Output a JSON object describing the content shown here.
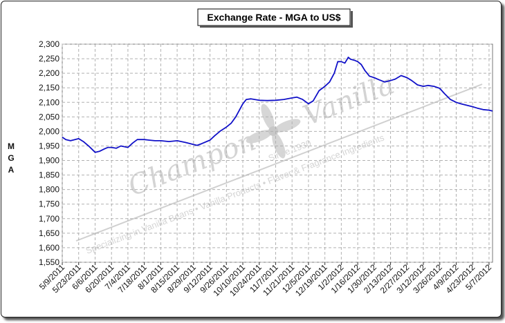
{
  "chart_data": {
    "type": "line",
    "title": "Exchange Rate - MGA to US$",
    "ylabel": "MGA",
    "xlabel": "",
    "ylim": [
      1550,
      2300
    ],
    "yticks": [
      1550,
      1600,
      1650,
      1700,
      1750,
      1800,
      1850,
      1900,
      1950,
      2000,
      2050,
      2100,
      2150,
      2200,
      2250,
      2300
    ],
    "ytick_labels": [
      "1,550",
      "1,600",
      "1,650",
      "1,700",
      "1,750",
      "1,800",
      "1,850",
      "1,900",
      "1,950",
      "2,000",
      "2,050",
      "2,100",
      "2,150",
      "2,200",
      "2,250",
      "2,300"
    ],
    "xticks": [
      "5/9/2011",
      "5/23/2011",
      "6/6/2011",
      "6/20/2011",
      "7/4/2011",
      "7/18/2011",
      "8/1/2011",
      "8/15/2011",
      "8/29/2011",
      "9/12/2011",
      "9/26/2011",
      "10/10/2011",
      "10/24/2011",
      "11/7/2011",
      "11/21/2011",
      "12/5/2011",
      "12/19/2011",
      "1/2/2012",
      "1/16/2012",
      "1/30/2012",
      "2/13/2012",
      "2/27/2012",
      "3/12/2012",
      "3/26/2012",
      "4/9/2012",
      "4/23/2012",
      "5/7/2012"
    ],
    "grid": true,
    "series": [
      {
        "color": "#1010c8",
        "x": [
          "5/9/2011",
          "5/12/2011",
          "5/16/2011",
          "5/23/2011",
          "5/27/2011",
          "6/1/2011",
          "6/6/2011",
          "6/10/2011",
          "6/14/2011",
          "6/17/2011",
          "6/20/2011",
          "6/24/2011",
          "6/28/2011",
          "7/4/2011",
          "7/8/2011",
          "7/12/2011",
          "7/18/2011",
          "7/22/2011",
          "7/27/2011",
          "8/1/2011",
          "8/8/2011",
          "8/15/2011",
          "8/22/2011",
          "8/29/2011",
          "9/1/2011",
          "9/5/2011",
          "9/12/2011",
          "9/16/2011",
          "9/21/2011",
          "9/26/2011",
          "9/30/2011",
          "10/4/2011",
          "10/10/2011",
          "10/13/2011",
          "10/17/2011",
          "10/24/2011",
          "10/31/2011",
          "11/7/2011",
          "11/14/2011",
          "11/21/2011",
          "11/25/2011",
          "11/30/2011",
          "12/5/2011",
          "12/9/2011",
          "12/14/2011",
          "12/19/2011",
          "12/23/2011",
          "12/27/2011",
          "12/30/2011",
          "1/2/2012",
          "1/5/2012",
          "1/8/2012",
          "1/10/2012",
          "1/13/2012",
          "1/16/2012",
          "1/19/2012",
          "1/22/2012",
          "1/26/2012",
          "1/30/2012",
          "2/3/2012",
          "2/8/2012",
          "2/13/2012",
          "2/17/2012",
          "2/22/2012",
          "2/27/2012",
          "3/2/2012",
          "3/7/2012",
          "3/12/2012",
          "3/16/2012",
          "3/21/2012",
          "3/26/2012",
          "3/30/2012",
          "4/4/2012",
          "4/9/2012",
          "4/13/2012",
          "4/18/2012",
          "4/23/2012",
          "4/27/2012",
          "5/2/2012",
          "5/7/2012",
          "5/10/2012"
        ],
        "y": [
          1980,
          1972,
          1968,
          1975,
          1965,
          1948,
          1928,
          1932,
          1940,
          1945,
          1945,
          1942,
          1950,
          1945,
          1960,
          1972,
          1972,
          1970,
          1968,
          1968,
          1965,
          1968,
          1962,
          1955,
          1952,
          1958,
          1970,
          1985,
          2002,
          2015,
          2028,
          2050,
          2095,
          2110,
          2112,
          2107,
          2106,
          2107,
          2110,
          2115,
          2118,
          2110,
          2095,
          2105,
          2140,
          2155,
          2170,
          2200,
          2240,
          2240,
          2235,
          2255,
          2248,
          2245,
          2240,
          2230,
          2210,
          2190,
          2185,
          2178,
          2170,
          2175,
          2180,
          2192,
          2185,
          2175,
          2160,
          2155,
          2158,
          2155,
          2148,
          2130,
          2110,
          2100,
          2095,
          2090,
          2085,
          2080,
          2075,
          2073,
          2070
        ]
      }
    ],
    "watermark": {
      "brand": "Champon",
      "brand2": "Vanilla",
      "since": "Since 1930",
      "tagline": "Specializing in Vanilla Beans  •  Vanilla Products  •  Flavor & Fragrance Ingredients"
    }
  }
}
